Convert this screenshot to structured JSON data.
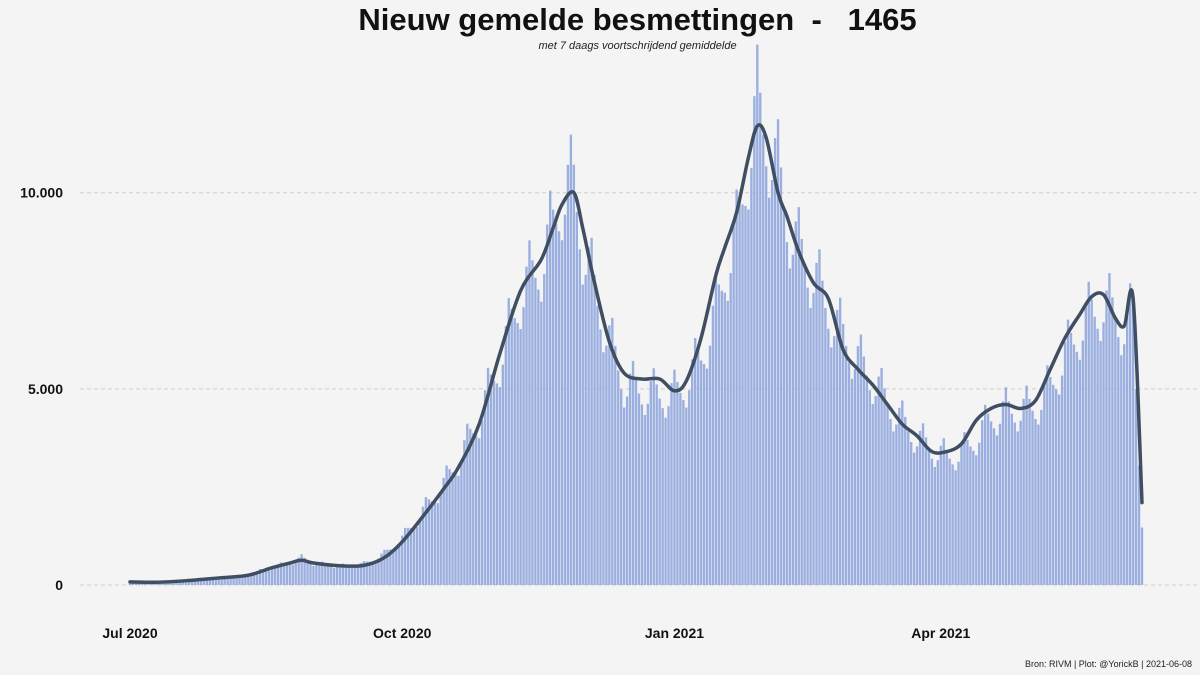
{
  "title": "Nieuw gemelde besmettingen  -   1465",
  "subtitle": "met 7 daags voortschrijdend gemiddelde",
  "caption": "Bron: RIVM | Plot: @YorickB |  2021-06-08",
  "colors": {
    "bars": "#9aaedf",
    "line": "#3f4e60",
    "grid": "#cfcfcf",
    "background": "#f4f4f4"
  },
  "chart_data": {
    "type": "bar",
    "x_range": [
      "2020-07-01",
      "2021-06-08"
    ],
    "ylim": [
      0,
      13000
    ],
    "y_ticks": [
      {
        "value": 0,
        "label": "0"
      },
      {
        "value": 5000,
        "label": "5.000"
      },
      {
        "value": 10000,
        "label": "10.000"
      }
    ],
    "x_ticks": [
      {
        "date": "2020-07-01",
        "label": "Jul 2020"
      },
      {
        "date": "2020-10-01",
        "label": "Oct 2020"
      },
      {
        "date": "2021-01-01",
        "label": "Jan 2021"
      },
      {
        "date": "2021-04-01",
        "label": "Apr 2021"
      }
    ],
    "grid": "horizontal dashed",
    "series": [
      {
        "name": "",
        "type": "bar",
        "points": [
          [
            "2020-07-01",
            80
          ],
          [
            "2020-07-10",
            70
          ],
          [
            "2020-07-20",
            120
          ],
          [
            "2020-07-31",
            180
          ],
          [
            "2020-08-10",
            260
          ],
          [
            "2020-08-18",
            470
          ],
          [
            "2020-08-24",
            560
          ],
          [
            "2020-08-28",
            700
          ],
          [
            "2020-09-01",
            560
          ],
          [
            "2020-09-10",
            480
          ],
          [
            "2020-09-18",
            540
          ],
          [
            "2020-09-25",
            800
          ],
          [
            "2020-10-01",
            1200
          ],
          [
            "2020-10-08",
            1900
          ],
          [
            "2020-10-15",
            2600
          ],
          [
            "2020-10-20",
            3200
          ],
          [
            "2020-10-27",
            4300
          ],
          [
            "2020-11-03",
            5800
          ],
          [
            "2020-11-10",
            7500
          ],
          [
            "2020-11-17",
            8300
          ],
          [
            "2020-11-21",
            9200
          ],
          [
            "2020-11-24",
            10100
          ],
          [
            "2020-11-28",
            10300
          ],
          [
            "2020-12-01",
            8800
          ],
          [
            "2020-12-05",
            7600
          ],
          [
            "2020-12-10",
            6300
          ],
          [
            "2020-12-15",
            5200
          ],
          [
            "2020-12-21",
            5000
          ],
          [
            "2020-12-27",
            4900
          ],
          [
            "2021-01-01",
            4900
          ],
          [
            "2021-01-05",
            5200
          ],
          [
            "2021-01-10",
            5900
          ],
          [
            "2021-01-15",
            7000
          ],
          [
            "2021-01-18",
            8100
          ],
          [
            "2021-01-22",
            9000
          ],
          [
            "2021-01-26",
            11000
          ],
          [
            "2021-01-29",
            12300
          ],
          [
            "2021-02-01",
            11600
          ],
          [
            "2021-02-05",
            10600
          ],
          [
            "2021-02-08",
            9500
          ],
          [
            "2021-02-12",
            8600
          ],
          [
            "2021-02-17",
            8000
          ],
          [
            "2021-02-22",
            7100
          ],
          [
            "2021-02-27",
            6400
          ],
          [
            "2021-03-04",
            5800
          ],
          [
            "2021-03-09",
            5300
          ],
          [
            "2021-03-14",
            4700
          ],
          [
            "2021-03-19",
            4200
          ],
          [
            "2021-03-24",
            3800
          ],
          [
            "2021-03-29",
            3500
          ],
          [
            "2021-04-03",
            3300
          ],
          [
            "2021-04-08",
            3400
          ],
          [
            "2021-04-13",
            3800
          ],
          [
            "2021-04-18",
            4300
          ],
          [
            "2021-04-23",
            4500
          ],
          [
            "2021-04-28",
            4500
          ],
          [
            "2021-05-03",
            4600
          ],
          [
            "2021-05-08",
            5100
          ],
          [
            "2021-05-13",
            5900
          ],
          [
            "2021-05-18",
            6600
          ],
          [
            "2021-05-22",
            7000
          ],
          [
            "2021-05-26",
            7200
          ],
          [
            "2021-05-30",
            7000
          ],
          [
            "2021-06-02",
            6600
          ],
          [
            "2021-06-05",
            7000
          ],
          [
            "2021-06-08",
            1465
          ]
        ]
      },
      {
        "name": "",
        "type": "line",
        "points": [
          [
            "2020-07-01",
            80
          ],
          [
            "2020-07-10",
            70
          ],
          [
            "2020-07-20",
            110
          ],
          [
            "2020-07-31",
            180
          ],
          [
            "2020-08-10",
            250
          ],
          [
            "2020-08-18",
            440
          ],
          [
            "2020-08-24",
            560
          ],
          [
            "2020-08-28",
            630
          ],
          [
            "2020-09-01",
            560
          ],
          [
            "2020-09-10",
            490
          ],
          [
            "2020-09-18",
            500
          ],
          [
            "2020-09-25",
            700
          ],
          [
            "2020-10-01",
            1100
          ],
          [
            "2020-10-08",
            1750
          ],
          [
            "2020-10-15",
            2450
          ],
          [
            "2020-10-20",
            3000
          ],
          [
            "2020-10-27",
            4100
          ],
          [
            "2020-11-03",
            5900
          ],
          [
            "2020-11-10",
            7500
          ],
          [
            "2020-11-17",
            8300
          ],
          [
            "2020-11-21",
            9100
          ],
          [
            "2020-11-24",
            9700
          ],
          [
            "2020-11-28",
            10000
          ],
          [
            "2020-12-01",
            9100
          ],
          [
            "2020-12-05",
            7700
          ],
          [
            "2020-12-10",
            6200
          ],
          [
            "2020-12-15",
            5400
          ],
          [
            "2020-12-21",
            5250
          ],
          [
            "2020-12-27",
            5250
          ],
          [
            "2021-01-01",
            4950
          ],
          [
            "2021-01-05",
            5200
          ],
          [
            "2021-01-10",
            6300
          ],
          [
            "2021-01-15",
            7900
          ],
          [
            "2021-01-18",
            8600
          ],
          [
            "2021-01-22",
            9500
          ],
          [
            "2021-01-26",
            10900
          ],
          [
            "2021-01-29",
            11700
          ],
          [
            "2021-02-01",
            11400
          ],
          [
            "2021-02-05",
            10000
          ],
          [
            "2021-02-08",
            9400
          ],
          [
            "2021-02-12",
            8500
          ],
          [
            "2021-02-17",
            7700
          ],
          [
            "2021-02-22",
            7300
          ],
          [
            "2021-02-27",
            6000
          ],
          [
            "2021-03-04",
            5500
          ],
          [
            "2021-03-09",
            5100
          ],
          [
            "2021-03-14",
            4600
          ],
          [
            "2021-03-19",
            4100
          ],
          [
            "2021-03-24",
            3800
          ],
          [
            "2021-03-29",
            3400
          ],
          [
            "2021-04-03",
            3400
          ],
          [
            "2021-04-08",
            3600
          ],
          [
            "2021-04-13",
            4200
          ],
          [
            "2021-04-18",
            4500
          ],
          [
            "2021-04-23",
            4600
          ],
          [
            "2021-04-28",
            4500
          ],
          [
            "2021-05-03",
            4700
          ],
          [
            "2021-05-08",
            5500
          ],
          [
            "2021-05-13",
            6300
          ],
          [
            "2021-05-18",
            6900
          ],
          [
            "2021-05-22",
            7350
          ],
          [
            "2021-05-26",
            7400
          ],
          [
            "2021-05-30",
            6800
          ],
          [
            "2021-06-02",
            6600
          ],
          [
            "2021-06-05",
            7300
          ],
          [
            "2021-06-08",
            2100
          ]
        ]
      }
    ]
  }
}
